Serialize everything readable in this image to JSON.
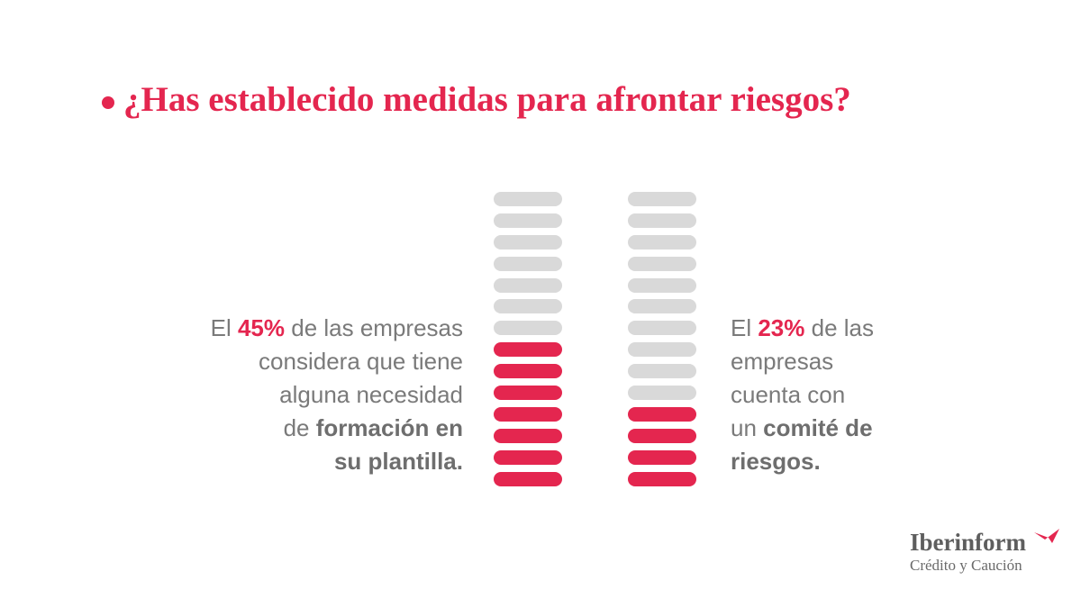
{
  "title": "¿Has establecido medidas para afrontar riesgos?",
  "colors": {
    "accent": "#e4264f",
    "inactive": "#d9d9d9",
    "text": "#7a7a7a"
  },
  "chart_data": [
    {
      "type": "bar",
      "segments_total": 14,
      "segments_filled": 7,
      "value_percent": 45,
      "label": {
        "pre": "El ",
        "pct": "45%",
        "line1_post": " de las empresas",
        "line2": "considera que tiene",
        "line3": "alguna necesidad",
        "line4_pre": "de ",
        "line4_bold": "formación en",
        "line5_bold": "su plantilla."
      }
    },
    {
      "type": "bar",
      "segments_total": 14,
      "segments_filled": 4,
      "value_percent": 23,
      "label": {
        "pre": "El ",
        "pct": "23%",
        "line1_post": " de las",
        "line2": "empresas",
        "line3": "cuenta con",
        "line4_pre": "un ",
        "line4_bold": "comité de",
        "line5_bold": "riesgos."
      }
    }
  ],
  "logo": {
    "name": "Iberinform",
    "sub": "Crédito y Caución",
    "mark": "arrow-mark-icon"
  }
}
